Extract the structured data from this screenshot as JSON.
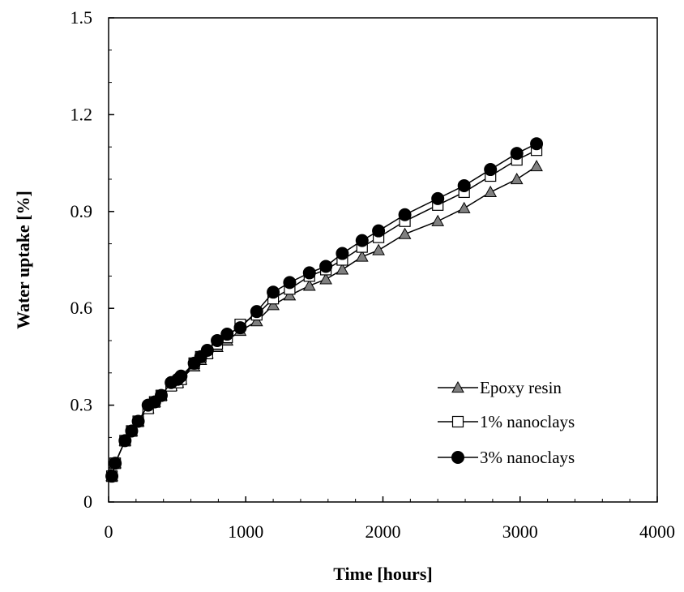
{
  "chart_data": {
    "type": "line",
    "title": "",
    "xlabel": "Time [hours]",
    "ylabel": "Water uptake [%]",
    "xlim": [
      0,
      4000
    ],
    "ylim": [
      0,
      1.5
    ],
    "xticks": [
      0,
      1000,
      2000,
      3000,
      4000
    ],
    "yticks": [
      0,
      0.3,
      0.6,
      0.9,
      1.2,
      1.5
    ],
    "ytick_labels": [
      "0",
      "0.3",
      "0.6",
      "0.9",
      "1.2",
      "1.5"
    ],
    "grid": false,
    "legend_position": "lower-right",
    "series": [
      {
        "name": "Epoxy resin",
        "marker": "triangle",
        "color": "#808080",
        "x": [
          24,
          48,
          120,
          168,
          216,
          288,
          336,
          384,
          456,
          504,
          528,
          624,
          672,
          720,
          792,
          864,
          960,
          1080,
          1200,
          1320,
          1464,
          1584,
          1704,
          1848,
          1968,
          2160,
          2400,
          2592,
          2784,
          2976,
          3120
        ],
        "y": [
          0.08,
          0.12,
          0.19,
          0.22,
          0.25,
          0.29,
          0.31,
          0.33,
          0.36,
          0.37,
          0.38,
          0.42,
          0.44,
          0.46,
          0.48,
          0.5,
          0.53,
          0.56,
          0.61,
          0.64,
          0.67,
          0.69,
          0.72,
          0.76,
          0.78,
          0.83,
          0.87,
          0.91,
          0.96,
          1.0,
          1.04
        ]
      },
      {
        "name": "1% nanoclays",
        "marker": "square",
        "color": "#ffffff",
        "x": [
          24,
          48,
          120,
          168,
          216,
          288,
          336,
          384,
          456,
          504,
          528,
          624,
          672,
          720,
          792,
          864,
          960,
          1080,
          1200,
          1320,
          1464,
          1584,
          1704,
          1848,
          1968,
          2160,
          2400,
          2592,
          2784,
          2976,
          3120
        ],
        "y": [
          0.08,
          0.12,
          0.19,
          0.22,
          0.25,
          0.29,
          0.31,
          0.33,
          0.36,
          0.37,
          0.38,
          0.43,
          0.45,
          0.46,
          0.49,
          0.51,
          0.55,
          0.58,
          0.63,
          0.66,
          0.7,
          0.72,
          0.75,
          0.79,
          0.82,
          0.87,
          0.92,
          0.96,
          1.01,
          1.06,
          1.09
        ]
      },
      {
        "name": "3% nanoclays",
        "marker": "circle",
        "color": "#000000",
        "x": [
          24,
          48,
          120,
          168,
          216,
          288,
          336,
          384,
          456,
          504,
          528,
          624,
          672,
          720,
          792,
          864,
          960,
          1080,
          1200,
          1320,
          1464,
          1584,
          1704,
          1848,
          1968,
          2160,
          2400,
          2592,
          2784,
          2976,
          3120
        ],
        "y": [
          0.08,
          0.12,
          0.19,
          0.22,
          0.25,
          0.3,
          0.31,
          0.33,
          0.37,
          0.38,
          0.39,
          0.43,
          0.45,
          0.47,
          0.5,
          0.52,
          0.54,
          0.59,
          0.65,
          0.68,
          0.71,
          0.73,
          0.77,
          0.81,
          0.84,
          0.89,
          0.94,
          0.98,
          1.03,
          1.08,
          1.11
        ]
      }
    ]
  }
}
